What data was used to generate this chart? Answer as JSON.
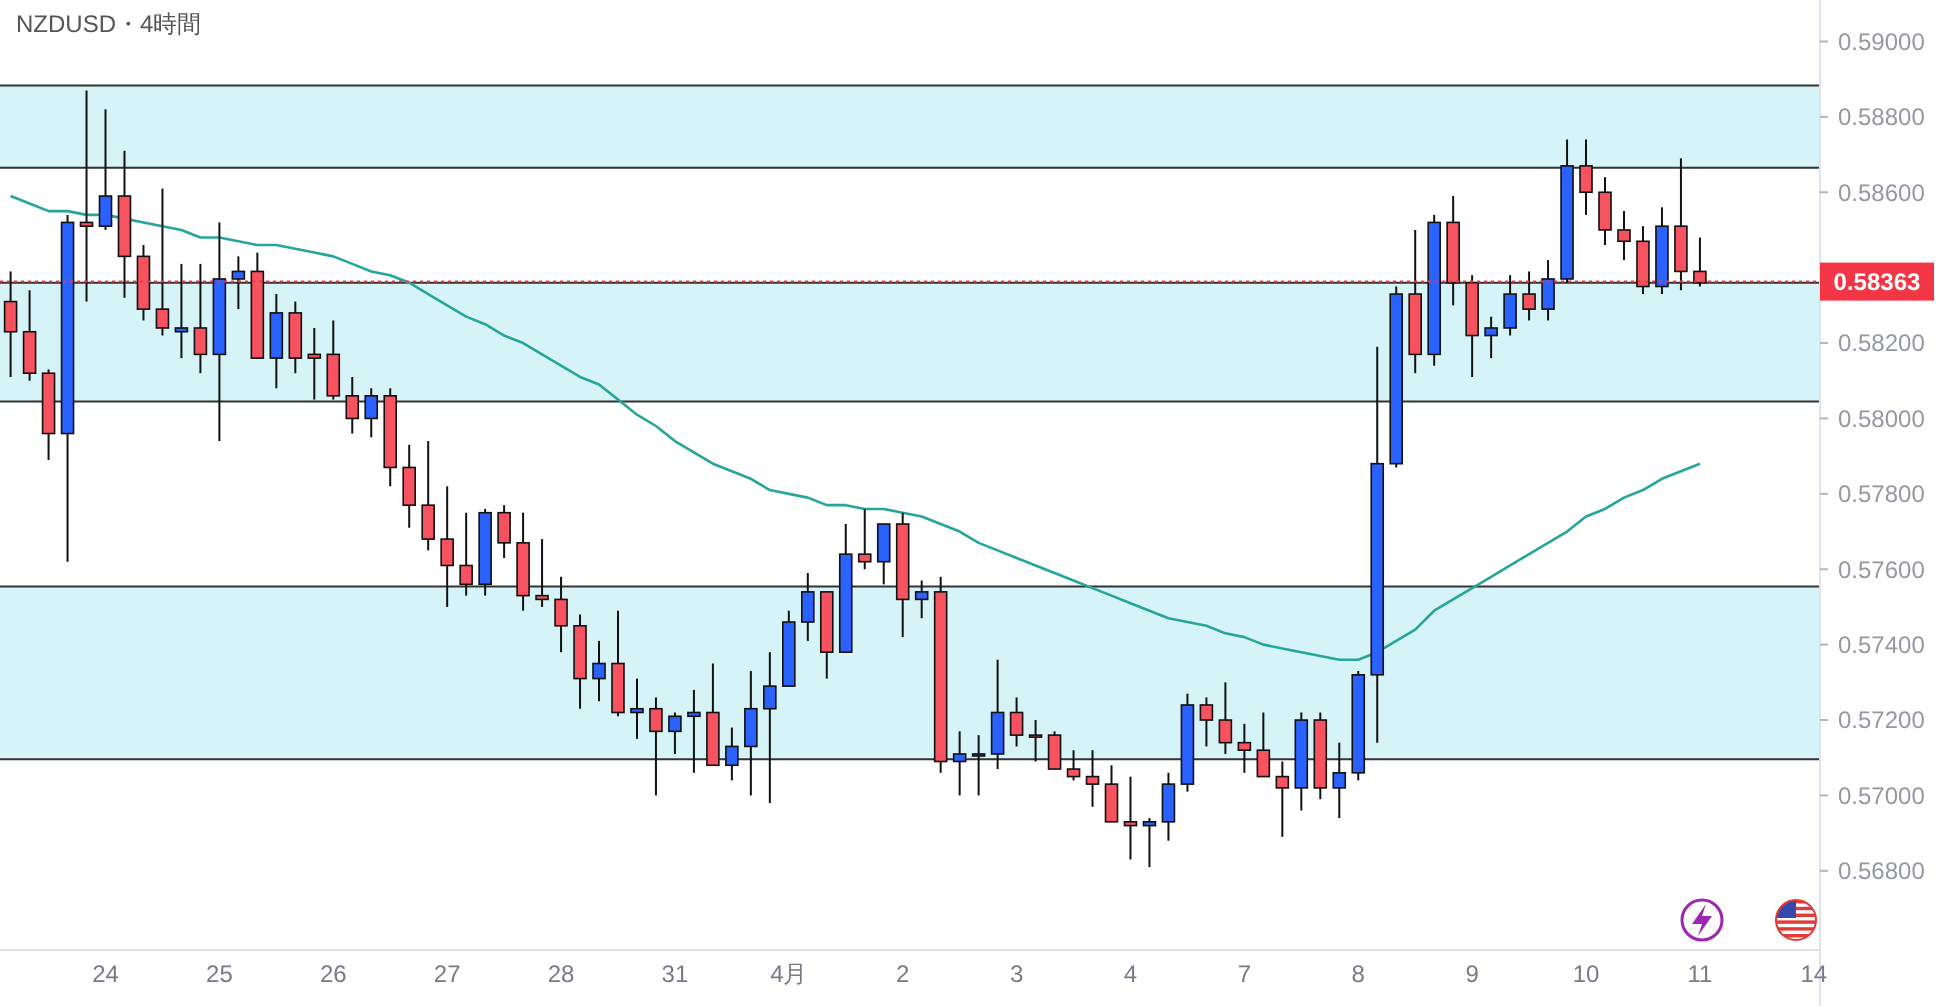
{
  "chart_data": {
    "type": "candlestick",
    "title": "NZDUSD・4時間",
    "categories": [
      null,
      null,
      null,
      null,
      null,
      "24",
      null,
      null,
      null,
      null,
      null,
      "25",
      null,
      null,
      null,
      null,
      null,
      "26",
      null,
      null,
      null,
      null,
      null,
      "27",
      null,
      null,
      null,
      null,
      null,
      "28",
      null,
      null,
      null,
      null,
      null,
      "31",
      null,
      null,
      null,
      null,
      null,
      "4月",
      null,
      null,
      null,
      null,
      null,
      "2",
      null,
      null,
      null,
      null,
      null,
      "3",
      null,
      null,
      null,
      null,
      null,
      "4",
      null,
      null,
      null,
      null,
      null,
      "7",
      null,
      null,
      null,
      null,
      null,
      "8",
      null,
      null,
      null,
      null,
      null,
      "9",
      null,
      null,
      null,
      null,
      null,
      "10",
      null,
      null,
      null,
      null,
      null,
      "11",
      null,
      null,
      null,
      null,
      null,
      "14"
    ],
    "ohlc": [
      [
        0.5831,
        0.5839,
        0.5811,
        0.5823
      ],
      [
        0.5823,
        0.5834,
        0.581,
        0.5812
      ],
      [
        0.5812,
        0.5813,
        0.5789,
        0.5796
      ],
      [
        0.5796,
        0.5854,
        0.5762,
        0.5852
      ],
      [
        0.5852,
        0.5887,
        0.5831,
        0.5851
      ],
      [
        0.5851,
        0.5882,
        0.585,
        0.5859
      ],
      [
        0.5859,
        0.5871,
        0.5832,
        0.5843
      ],
      [
        0.5843,
        0.5846,
        0.5826,
        0.5829
      ],
      [
        0.5829,
        0.5861,
        0.5822,
        0.5824
      ],
      [
        0.5823,
        0.5841,
        0.5816,
        0.5824
      ],
      [
        0.5824,
        0.5841,
        0.5812,
        0.5817
      ],
      [
        0.5817,
        0.5852,
        0.5794,
        0.5837
      ],
      [
        0.5837,
        0.5843,
        0.5829,
        0.5839
      ],
      [
        0.5839,
        0.5844,
        0.5816,
        0.5816
      ],
      [
        0.5816,
        0.5833,
        0.5808,
        0.5828
      ],
      [
        0.5828,
        0.5831,
        0.5812,
        0.5816
      ],
      [
        0.5817,
        0.5824,
        0.5805,
        0.5816
      ],
      [
        0.5817,
        0.5826,
        0.5805,
        0.5806
      ],
      [
        0.5806,
        0.5811,
        0.5796,
        0.58
      ],
      [
        0.58,
        0.5808,
        0.5795,
        0.5806
      ],
      [
        0.5806,
        0.5808,
        0.5782,
        0.5787
      ],
      [
        0.5787,
        0.5793,
        0.5771,
        0.5777
      ],
      [
        0.5777,
        0.5794,
        0.5765,
        0.5768
      ],
      [
        0.5768,
        0.5782,
        0.575,
        0.5761
      ],
      [
        0.5761,
        0.5775,
        0.5753,
        0.5756
      ],
      [
        0.5756,
        0.5776,
        0.5753,
        0.5775
      ],
      [
        0.5775,
        0.5777,
        0.5763,
        0.5767
      ],
      [
        0.5767,
        0.5775,
        0.5749,
        0.5753
      ],
      [
        0.5753,
        0.5768,
        0.575,
        0.5752
      ],
      [
        0.5752,
        0.5758,
        0.5738,
        0.5745
      ],
      [
        0.5745,
        0.5748,
        0.5723,
        0.5731
      ],
      [
        0.5731,
        0.5741,
        0.5725,
        0.5735
      ],
      [
        0.5735,
        0.5749,
        0.5721,
        0.5722
      ],
      [
        0.5722,
        0.5731,
        0.5715,
        0.5723
      ],
      [
        0.5723,
        0.5726,
        0.57,
        0.5717
      ],
      [
        0.5717,
        0.5722,
        0.5711,
        0.5721
      ],
      [
        0.5721,
        0.5728,
        0.5706,
        0.5722
      ],
      [
        0.5722,
        0.5735,
        0.5708,
        0.5708
      ],
      [
        0.5708,
        0.5718,
        0.5704,
        0.5713
      ],
      [
        0.5713,
        0.5733,
        0.57,
        0.5723
      ],
      [
        0.5723,
        0.5738,
        0.5698,
        0.5729
      ],
      [
        0.5729,
        0.5749,
        0.5729,
        0.5746
      ],
      [
        0.5746,
        0.5759,
        0.5741,
        0.5754
      ],
      [
        0.5754,
        0.5754,
        0.5731,
        0.5738
      ],
      [
        0.5738,
        0.5772,
        0.5738,
        0.5764
      ],
      [
        0.5764,
        0.5776,
        0.576,
        0.5762
      ],
      [
        0.5762,
        0.5772,
        0.5756,
        0.5772
      ],
      [
        0.5772,
        0.5775,
        0.5742,
        0.5752
      ],
      [
        0.5752,
        0.5757,
        0.5747,
        0.5754
      ],
      [
        0.5754,
        0.5758,
        0.5706,
        0.5709
      ],
      [
        0.5709,
        0.5717,
        0.57,
        0.5711
      ],
      [
        0.5711,
        0.5716,
        0.57,
        0.5711
      ],
      [
        0.5711,
        0.5736,
        0.5707,
        0.5722
      ],
      [
        0.5722,
        0.5726,
        0.5713,
        0.5716
      ],
      [
        0.5716,
        0.572,
        0.5709,
        0.5716
      ],
      [
        0.5716,
        0.5717,
        0.5707,
        0.5707
      ],
      [
        0.5707,
        0.5712,
        0.5704,
        0.5705
      ],
      [
        0.5705,
        0.5712,
        0.5697,
        0.5703
      ],
      [
        0.5703,
        0.5708,
        0.5693,
        0.5693
      ],
      [
        0.5693,
        0.5705,
        0.5683,
        0.5692
      ],
      [
        0.5692,
        0.5694,
        0.5681,
        0.5693
      ],
      [
        0.5693,
        0.5706,
        0.5688,
        0.5703
      ],
      [
        0.5703,
        0.5727,
        0.5701,
        0.5724
      ],
      [
        0.5724,
        0.5726,
        0.5713,
        0.572
      ],
      [
        0.572,
        0.573,
        0.5711,
        0.5714
      ],
      [
        0.5714,
        0.5719,
        0.5706,
        0.5712
      ],
      [
        0.5712,
        0.5722,
        0.5705,
        0.5705
      ],
      [
        0.5705,
        0.5709,
        0.5689,
        0.5702
      ],
      [
        0.5702,
        0.5722,
        0.5696,
        0.572
      ],
      [
        0.572,
        0.5722,
        0.5699,
        0.5702
      ],
      [
        0.5702,
        0.5714,
        0.5694,
        0.5706
      ],
      [
        0.5706,
        0.5733,
        0.5704,
        0.5732
      ],
      [
        0.5732,
        0.5819,
        0.5714,
        0.5788
      ],
      [
        0.5788,
        0.5835,
        0.5787,
        0.5833
      ],
      [
        0.5833,
        0.585,
        0.5812,
        0.5817
      ],
      [
        0.5817,
        0.5854,
        0.5814,
        0.5852
      ],
      [
        0.5852,
        0.5859,
        0.583,
        0.5836
      ],
      [
        0.5836,
        0.5838,
        0.5811,
        0.5822
      ],
      [
        0.5822,
        0.5827,
        0.5816,
        0.5824
      ],
      [
        0.5824,
        0.5838,
        0.5822,
        0.5833
      ],
      [
        0.5833,
        0.5839,
        0.5826,
        0.5829
      ],
      [
        0.5829,
        0.5842,
        0.5826,
        0.5837
      ],
      [
        0.5837,
        0.5874,
        0.5836,
        0.5867
      ],
      [
        0.5867,
        0.5874,
        0.5854,
        0.586
      ],
      [
        0.586,
        0.5864,
        0.5846,
        0.585
      ],
      [
        0.585,
        0.5855,
        0.5842,
        0.5847
      ],
      [
        0.5847,
        0.5851,
        0.5833,
        0.5835
      ],
      [
        0.5835,
        0.5856,
        0.5833,
        0.5851
      ],
      [
        0.5851,
        0.5869,
        0.5834,
        0.5839
      ],
      [
        0.5839,
        0.5848,
        0.5835,
        0.5836
      ],
      null,
      null,
      null,
      null,
      null,
      null
    ],
    "colors": [
      "#f7525f",
      "#f7525f",
      "#f7525f",
      "#2962ff",
      "#f7525f",
      "#2962ff",
      "#f7525f",
      "#f7525f",
      "#f7525f",
      "#2962ff",
      "#f7525f",
      "#2962ff",
      "#2962ff",
      "#f7525f",
      "#2962ff",
      "#f7525f",
      "#f7525f",
      "#f7525f",
      "#f7525f",
      "#2962ff",
      "#f7525f",
      "#f7525f",
      "#f7525f",
      "#f7525f",
      "#f7525f",
      "#2962ff",
      "#f7525f",
      "#f7525f",
      "#f7525f",
      "#f7525f",
      "#f7525f",
      "#2962ff",
      "#f7525f",
      "#2962ff",
      "#f7525f",
      "#2962ff",
      "#2962ff",
      "#f7525f",
      "#2962ff",
      "#2962ff",
      "#2962ff",
      "#2962ff",
      "#2962ff",
      "#f7525f",
      "#2962ff",
      "#f7525f",
      "#2962ff",
      "#f7525f",
      "#2962ff",
      "#f7525f",
      "#2962ff",
      "#2962ff",
      "#2962ff",
      "#f7525f",
      "#f7525f",
      "#f7525f",
      "#f7525f",
      "#f7525f",
      "#f7525f",
      "#f7525f",
      "#2962ff",
      "#2962ff",
      "#2962ff",
      "#f7525f",
      "#f7525f",
      "#f7525f",
      "#f7525f",
      "#f7525f",
      "#2962ff",
      "#f7525f",
      "#2962ff",
      "#2962ff",
      "#2962ff",
      "#2962ff",
      "#f7525f",
      "#2962ff",
      "#f7525f",
      "#f7525f",
      "#2962ff",
      "#2962ff",
      "#f7525f",
      "#2962ff",
      "#2962ff",
      "#f7525f",
      "#f7525f",
      "#f7525f",
      "#f7525f",
      "#2962ff",
      "#f7525f",
      "#f7525f",
      null,
      null,
      null,
      null,
      null,
      null
    ],
    "series": [
      {
        "type": "line",
        "color": "#26a69a",
        "values": [
          0.5859,
          0.5857,
          0.5855,
          0.5855,
          0.5854,
          0.5854,
          0.5853,
          0.5852,
          0.5851,
          0.585,
          0.5848,
          0.5848,
          0.5847,
          0.5846,
          0.5846,
          0.5845,
          0.5844,
          0.5843,
          0.5841,
          0.5839,
          0.5838,
          0.5836,
          0.5833,
          0.583,
          0.5827,
          0.5825,
          0.5822,
          0.582,
          0.5817,
          0.5814,
          0.5811,
          0.5809,
          0.5805,
          0.5801,
          0.5798,
          0.5794,
          0.5791,
          0.5788,
          0.5786,
          0.5784,
          0.5781,
          0.578,
          0.5779,
          0.5777,
          0.5777,
          0.5776,
          0.5776,
          0.5775,
          0.5774,
          0.5772,
          0.577,
          0.5767,
          0.5765,
          0.5763,
          0.5761,
          0.5759,
          0.5757,
          0.5755,
          0.5753,
          0.5751,
          0.5749,
          0.5747,
          0.5746,
          0.5745,
          0.5743,
          0.5742,
          0.574,
          0.5739,
          0.5738,
          0.5737,
          0.5736,
          0.5736,
          0.5738,
          0.5741,
          0.5744,
          0.5749,
          0.5752,
          0.5755,
          0.5758,
          0.5761,
          0.5764,
          0.5767,
          0.577,
          0.5774,
          0.5776,
          0.5779,
          0.5781,
          0.5784,
          0.5786,
          0.5788,
          null,
          null,
          null,
          null,
          null,
          null
        ]
      }
    ],
    "ylim": [
      0.5659,
      0.5911
    ],
    "yticks": [
      {
        "value": 0.568,
        "label": "0.56800"
      },
      {
        "value": 0.57,
        "label": "0.57000"
      },
      {
        "value": 0.572,
        "label": "0.57200"
      },
      {
        "value": 0.574,
        "label": "0.57400"
      },
      {
        "value": 0.576,
        "label": "0.57600"
      },
      {
        "value": 0.578,
        "label": "0.57800"
      },
      {
        "value": 0.58,
        "label": "0.58000"
      },
      {
        "value": 0.582,
        "label": "0.58200"
      },
      {
        "value": 0.584,
        "label": null
      },
      {
        "value": 0.586,
        "label": "0.58600"
      },
      {
        "value": 0.588,
        "label": "0.58800"
      },
      {
        "value": 0.59,
        "label": "0.59000"
      }
    ],
    "bands": [
      {
        "axis": "y",
        "from": 0.58665,
        "to": 0.58883,
        "color": "#d6f4f7"
      },
      {
        "axis": "y",
        "from": 0.58045,
        "to": 0.5836,
        "color": "#d6f4f7"
      },
      {
        "axis": "y",
        "from": 0.57096,
        "to": 0.57554,
        "color": "#d6f4f7"
      }
    ],
    "ref_lines": [
      {
        "axis": "y",
        "value": 0.58363,
        "label": "0.58363",
        "color": "#f23645",
        "line_style": "dotted"
      }
    ]
  }
}
